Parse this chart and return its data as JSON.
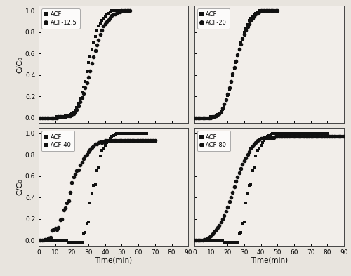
{
  "subplots": [
    {
      "label": "ACF-12.5",
      "acf_x": [
        0,
        1,
        2,
        3,
        4,
        5,
        6,
        7,
        8,
        9,
        10,
        11,
        12,
        13,
        14,
        15,
        16,
        17,
        18,
        19,
        20,
        21,
        22,
        23,
        24,
        25,
        26,
        27,
        28,
        29,
        30,
        31,
        32,
        33,
        34,
        35,
        36,
        37,
        38,
        39,
        40,
        41,
        42,
        43,
        44,
        45,
        46,
        47,
        48,
        49,
        50
      ],
      "acf_y": [
        0.0,
        0.0,
        0.0,
        0.0,
        0.0,
        0.0,
        0.0,
        0.0,
        0.0,
        0.0,
        0.0,
        0.01,
        0.01,
        0.01,
        0.01,
        0.01,
        0.02,
        0.02,
        0.02,
        0.03,
        0.04,
        0.05,
        0.07,
        0.1,
        0.14,
        0.18,
        0.24,
        0.29,
        0.34,
        0.43,
        0.52,
        0.57,
        0.64,
        0.71,
        0.76,
        0.82,
        0.86,
        0.88,
        0.91,
        0.93,
        0.95,
        0.97,
        0.98,
        0.99,
        1.0,
        1.0,
        1.0,
        1.0,
        1.0,
        1.0,
        1.0
      ],
      "mod_x": [
        0,
        1,
        2,
        3,
        4,
        5,
        6,
        7,
        8,
        9,
        10,
        11,
        12,
        13,
        14,
        15,
        16,
        17,
        18,
        19,
        20,
        21,
        22,
        23,
        24,
        25,
        26,
        27,
        28,
        29,
        30,
        31,
        32,
        33,
        34,
        35,
        36,
        37,
        38,
        39,
        40,
        41,
        42,
        43,
        44,
        45,
        46,
        47,
        48,
        49,
        50,
        51,
        52,
        53,
        54,
        55
      ],
      "mod_y": [
        0.0,
        0.0,
        0.0,
        0.0,
        0.0,
        0.0,
        0.0,
        0.0,
        0.0,
        0.0,
        0.0,
        0.0,
        0.01,
        0.01,
        0.01,
        0.01,
        0.01,
        0.02,
        0.02,
        0.02,
        0.03,
        0.04,
        0.06,
        0.08,
        0.11,
        0.15,
        0.19,
        0.23,
        0.28,
        0.33,
        0.38,
        0.44,
        0.51,
        0.57,
        0.63,
        0.68,
        0.73,
        0.78,
        0.82,
        0.86,
        0.88,
        0.9,
        0.92,
        0.94,
        0.96,
        0.97,
        0.97,
        0.98,
        0.99,
        0.99,
        1.0,
        1.0,
        1.0,
        1.0,
        1.0,
        1.0
      ]
    },
    {
      "label": "ACF-20",
      "acf_x": [
        0,
        1,
        2,
        3,
        4,
        5,
        6,
        7,
        8,
        9,
        10,
        11,
        12,
        13,
        14,
        15,
        16,
        17,
        18,
        19,
        20,
        21,
        22,
        23,
        24,
        25,
        26,
        27,
        28,
        29,
        30,
        31,
        32,
        33,
        34,
        35,
        36,
        37,
        38,
        39,
        40,
        41,
        42,
        43,
        44,
        45
      ],
      "acf_y": [
        0.0,
        0.0,
        0.0,
        0.0,
        0.0,
        0.0,
        0.0,
        0.0,
        0.0,
        0.0,
        0.01,
        0.01,
        0.01,
        0.02,
        0.03,
        0.04,
        0.06,
        0.08,
        0.12,
        0.16,
        0.21,
        0.27,
        0.33,
        0.4,
        0.46,
        0.52,
        0.58,
        0.64,
        0.7,
        0.75,
        0.8,
        0.84,
        0.87,
        0.91,
        0.93,
        0.95,
        0.97,
        0.98,
        0.99,
        1.0,
        1.0,
        1.0,
        1.0,
        1.0,
        1.0,
        1.0
      ],
      "mod_x": [
        0,
        1,
        2,
        3,
        4,
        5,
        6,
        7,
        8,
        9,
        10,
        11,
        12,
        13,
        14,
        15,
        16,
        17,
        18,
        19,
        20,
        21,
        22,
        23,
        24,
        25,
        26,
        27,
        28,
        29,
        30,
        31,
        32,
        33,
        34,
        35,
        36,
        37,
        38,
        39,
        40,
        41,
        42,
        43,
        44,
        45,
        46,
        47,
        48,
        49,
        50
      ],
      "mod_y": [
        0.0,
        0.0,
        0.0,
        0.0,
        0.0,
        0.0,
        0.0,
        0.0,
        0.0,
        0.0,
        0.0,
        0.01,
        0.01,
        0.02,
        0.03,
        0.04,
        0.06,
        0.09,
        0.13,
        0.17,
        0.22,
        0.28,
        0.34,
        0.41,
        0.47,
        0.53,
        0.59,
        0.64,
        0.69,
        0.74,
        0.78,
        0.82,
        0.85,
        0.88,
        0.91,
        0.93,
        0.95,
        0.97,
        0.98,
        0.99,
        1.0,
        1.0,
        1.0,
        1.0,
        1.0,
        1.0,
        1.0,
        1.0,
        1.0,
        1.0,
        1.0
      ]
    },
    {
      "label": "ACF-40",
      "acf_x": [
        0,
        1,
        2,
        3,
        4,
        5,
        6,
        7,
        8,
        9,
        10,
        11,
        12,
        13,
        14,
        15,
        16,
        17,
        18,
        19,
        20,
        21,
        22,
        23,
        24,
        25,
        26,
        27,
        28,
        29,
        30,
        31,
        32,
        33,
        34,
        35,
        36,
        37,
        38,
        39,
        40,
        41,
        42,
        43,
        44,
        45,
        46,
        47,
        48,
        49,
        50,
        51,
        52,
        53,
        54,
        55,
        56,
        57,
        58,
        59,
        60,
        61,
        62,
        63,
        64,
        65
      ],
      "acf_y": [
        0.0,
        0.0,
        0.0,
        0.0,
        0.0,
        0.0,
        0.0,
        0.0,
        0.0,
        0.0,
        0.0,
        0.0,
        0.0,
        0.0,
        0.0,
        0.0,
        0.0,
        0.0,
        -0.02,
        -0.02,
        -0.02,
        -0.02,
        -0.02,
        -0.02,
        -0.02,
        -0.02,
        -0.02,
        0.06,
        0.07,
        0.16,
        0.17,
        0.35,
        0.44,
        0.51,
        0.52,
        0.65,
        0.68,
        0.79,
        0.84,
        0.86,
        0.89,
        0.91,
        0.93,
        0.95,
        0.97,
        0.98,
        0.99,
        1.0,
        1.0,
        1.0,
        1.0,
        1.0,
        1.0,
        1.0,
        1.0,
        1.0,
        1.0,
        1.0,
        1.0,
        1.0,
        1.0,
        1.0,
        1.0,
        1.0,
        1.0,
        1.0
      ],
      "mod_x": [
        0,
        1,
        2,
        3,
        4,
        5,
        6,
        7,
        8,
        9,
        10,
        11,
        12,
        13,
        14,
        15,
        16,
        17,
        18,
        19,
        20,
        21,
        22,
        23,
        24,
        25,
        26,
        27,
        28,
        29,
        30,
        31,
        32,
        33,
        34,
        35,
        36,
        37,
        38,
        39,
        40,
        41,
        42,
        43,
        44,
        45,
        46,
        47,
        48,
        49,
        50,
        51,
        52,
        53,
        54,
        55,
        56,
        57,
        58,
        59,
        60,
        61,
        62,
        63,
        64,
        65,
        66,
        67,
        68,
        69,
        70
      ],
      "mod_y": [
        0.0,
        0.0,
        0.0,
        0.0,
        0.01,
        0.01,
        0.02,
        0.03,
        0.09,
        0.1,
        0.11,
        0.1,
        0.12,
        0.19,
        0.2,
        0.28,
        0.3,
        0.35,
        0.37,
        0.45,
        0.54,
        0.59,
        0.62,
        0.65,
        0.66,
        0.7,
        0.73,
        0.76,
        0.79,
        0.8,
        0.83,
        0.85,
        0.87,
        0.88,
        0.9,
        0.9,
        0.91,
        0.92,
        0.91,
        0.92,
        0.93,
        0.93,
        0.93,
        0.93,
        0.93,
        0.93,
        0.93,
        0.93,
        0.93,
        0.93,
        0.93,
        0.93,
        0.93,
        0.93,
        0.93,
        0.93,
        0.93,
        0.93,
        0.93,
        0.93,
        0.93,
        0.93,
        0.93,
        0.93,
        0.93,
        0.93,
        0.93,
        0.93,
        0.93,
        0.93,
        0.93
      ]
    },
    {
      "label": "ACF-80",
      "acf_x": [
        0,
        1,
        2,
        3,
        4,
        5,
        6,
        7,
        8,
        9,
        10,
        11,
        12,
        13,
        14,
        15,
        16,
        17,
        18,
        19,
        20,
        21,
        22,
        23,
        24,
        25,
        26,
        27,
        28,
        29,
        30,
        31,
        32,
        33,
        34,
        35,
        36,
        37,
        38,
        39,
        40,
        41,
        42,
        43,
        44,
        45,
        46,
        47,
        48,
        49,
        50,
        51,
        52,
        53,
        54,
        55,
        56,
        57,
        58,
        59,
        60,
        61,
        62,
        63,
        64,
        65,
        66,
        67,
        68,
        69,
        70,
        71,
        72,
        73,
        74,
        75,
        76,
        77,
        78,
        79,
        80
      ],
      "acf_y": [
        0.0,
        0.0,
        0.0,
        0.0,
        0.0,
        0.0,
        0.0,
        0.0,
        0.0,
        0.0,
        0.0,
        0.0,
        0.0,
        0.0,
        0.0,
        0.0,
        0.0,
        0.0,
        -0.02,
        -0.02,
        -0.02,
        -0.02,
        -0.02,
        -0.02,
        -0.02,
        -0.02,
        -0.02,
        0.06,
        0.07,
        0.16,
        0.17,
        0.35,
        0.44,
        0.51,
        0.52,
        0.65,
        0.68,
        0.79,
        0.84,
        0.86,
        0.89,
        0.91,
        0.93,
        0.95,
        0.97,
        0.98,
        0.99,
        1.0,
        1.0,
        1.0,
        1.0,
        1.0,
        1.0,
        1.0,
        1.0,
        1.0,
        1.0,
        1.0,
        1.0,
        1.0,
        1.0,
        1.0,
        1.0,
        1.0,
        1.0,
        1.0,
        1.0,
        1.0,
        1.0,
        1.0,
        1.0,
        1.0,
        1.0,
        1.0,
        1.0,
        1.0,
        1.0,
        1.0,
        1.0,
        1.0,
        1.0
      ],
      "mod_x": [
        0,
        1,
        2,
        3,
        4,
        5,
        6,
        7,
        8,
        9,
        10,
        11,
        12,
        13,
        14,
        15,
        16,
        17,
        18,
        19,
        20,
        21,
        22,
        23,
        24,
        25,
        26,
        27,
        28,
        29,
        30,
        31,
        32,
        33,
        34,
        35,
        36,
        37,
        38,
        39,
        40,
        41,
        42,
        43,
        44,
        45,
        46,
        47,
        48,
        49,
        50,
        51,
        52,
        53,
        54,
        55,
        56,
        57,
        58,
        59,
        60,
        61,
        62,
        63,
        64,
        65,
        66,
        67,
        68,
        69,
        70,
        71,
        72,
        73,
        74,
        75,
        76,
        77,
        78,
        79,
        80,
        81,
        82,
        83,
        84,
        85,
        86,
        87,
        88,
        89,
        90
      ],
      "mod_y": [
        0.0,
        0.0,
        0.0,
        0.0,
        0.0,
        0.0,
        0.01,
        0.01,
        0.02,
        0.03,
        0.04,
        0.06,
        0.08,
        0.1,
        0.12,
        0.14,
        0.17,
        0.2,
        0.23,
        0.27,
        0.31,
        0.36,
        0.4,
        0.45,
        0.5,
        0.55,
        0.59,
        0.63,
        0.67,
        0.71,
        0.74,
        0.77,
        0.8,
        0.83,
        0.86,
        0.88,
        0.9,
        0.91,
        0.93,
        0.94,
        0.95,
        0.95,
        0.96,
        0.96,
        0.96,
        0.96,
        0.96,
        0.96,
        0.96,
        0.97,
        0.97,
        0.97,
        0.97,
        0.97,
        0.97,
        0.97,
        0.97,
        0.97,
        0.97,
        0.97,
        0.97,
        0.97,
        0.97,
        0.97,
        0.97,
        0.97,
        0.97,
        0.97,
        0.97,
        0.97,
        0.97,
        0.97,
        0.97,
        0.97,
        0.97,
        0.97,
        0.97,
        0.97,
        0.97,
        0.97,
        0.97,
        0.97,
        0.97,
        0.97,
        0.97,
        0.97,
        0.97,
        0.97,
        0.97,
        0.97,
        0.97
      ]
    }
  ],
  "xlim": [
    0,
    90
  ],
  "ylim": [
    -0.05,
    1.05
  ],
  "xticks": [
    0,
    10,
    20,
    30,
    40,
    50,
    60,
    70,
    80,
    90
  ],
  "yticks": [
    0.0,
    0.2,
    0.4,
    0.6,
    0.8,
    1.0
  ],
  "ytick_labels": [
    "0.0",
    "0.2",
    "0.4",
    "0.6",
    "0.8",
    "1.0"
  ],
  "xlabel": "Time(min)",
  "ylabel": "C/C₀",
  "acf_marker": "s",
  "mod_marker": "o",
  "marker_size": 3.5,
  "color": "#111111",
  "bg_color": "#e8e4de",
  "plot_bg": "#f2eeea"
}
